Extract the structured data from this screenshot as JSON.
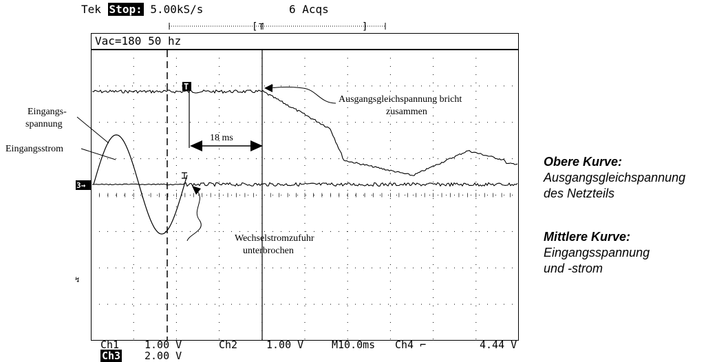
{
  "header": {
    "brand": "Tek",
    "state": "Stop:",
    "rate": "5.00kS/s",
    "acqs": "6 Acqs"
  },
  "measurement": "Vac=180 50 hz",
  "markers": {
    "trigger": "T",
    "ch3_marker": "3→",
    "bracket_left": "[",
    "bracket_right": "]"
  },
  "annotations": {
    "input_voltage_1": "Eingangs-",
    "input_voltage_2": "spannung",
    "input_current": "Eingangsstrom",
    "interval": "18 ms",
    "output_collapse_1": "Ausgangsgleichspannung bricht",
    "output_collapse_2": "zusammen",
    "ac_interrupt_1": "Wechselstromzufuhr",
    "ac_interrupt_2": "unterbrochen"
  },
  "footer": {
    "ch1": "Ch1",
    "ch1_scale": "1.00 V",
    "ch2": "Ch2",
    "ch2_scale": "1.00 V",
    "timebase": "M10.0ms",
    "ch4": "Ch4",
    "trig_level": "4.44 V",
    "ch3": "Ch3",
    "ch3_scale": "2.00 V"
  },
  "legend": {
    "upper_heading": "Obere Kurve:",
    "upper_line1": "Ausgangsgleichspannung",
    "upper_line2": "des Netzteils",
    "middle_heading": "Mittlere Kurve:",
    "middle_line1": "Eingangsspannung",
    "middle_line2": "und -strom"
  }
}
